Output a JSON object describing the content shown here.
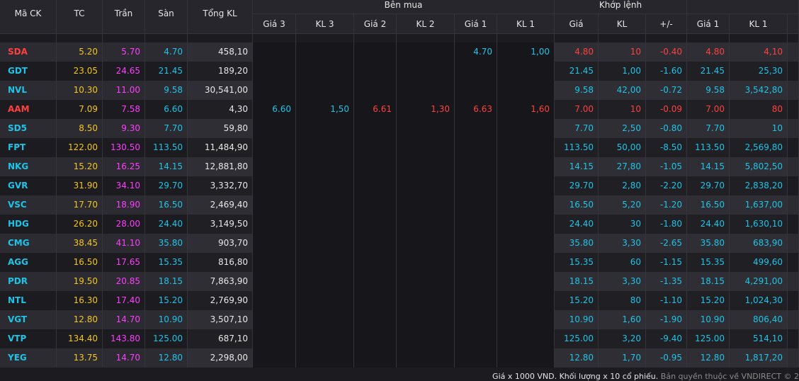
{
  "table": {
    "groups": [
      "Bên mua",
      "Khớp lệnh"
    ],
    "headers": [
      "Mã CK",
      "TC",
      "Trần",
      "Sàn",
      "Tổng KL",
      "Giá 3",
      "KL 3",
      "Giá 2",
      "KL 2",
      "Giá 1",
      "KL 1",
      "Giá",
      "KL",
      "+/-",
      "Giá 1",
      "KL 1"
    ],
    "rows": [
      [
        "SDA",
        "5.20",
        "5.70",
        "4.70",
        "458,10",
        null,
        null,
        null,
        null,
        "4.70",
        "1,00",
        "4.80",
        "10",
        "-0.40",
        "4.80",
        "4,10"
      ],
      [
        "GDT",
        "23.05",
        "24.65",
        "21.45",
        "189,20",
        null,
        null,
        null,
        null,
        null,
        null,
        "21.45",
        "1,00",
        "-1.60",
        "21.45",
        "25,30"
      ],
      [
        "NVL",
        "10.30",
        "11.00",
        "9.58",
        "30,541,00",
        null,
        null,
        null,
        null,
        null,
        null,
        "9.58",
        "42,00",
        "-0.72",
        "9.58",
        "3,542,80"
      ],
      [
        "AAM",
        "7.09",
        "7.58",
        "6.60",
        "4,30",
        "6.60",
        "1,50",
        "6.61",
        "1,30",
        "6.63",
        "1,60",
        "7.00",
        "10",
        "-0.09",
        "7.00",
        "80"
      ],
      [
        "SD5",
        "8.50",
        "9.30",
        "7.70",
        "59,80",
        null,
        null,
        null,
        null,
        null,
        null,
        "7.70",
        "2,50",
        "-0.80",
        "7.70",
        "10"
      ],
      [
        "FPT",
        "122.00",
        "130.50",
        "113.50",
        "11,484,90",
        null,
        null,
        null,
        null,
        null,
        null,
        "113.50",
        "50,00",
        "-8.50",
        "113.50",
        "2,569,80"
      ],
      [
        "NKG",
        "15.20",
        "16.25",
        "14.15",
        "12,881,80",
        null,
        null,
        null,
        null,
        null,
        null,
        "14.15",
        "27,80",
        "-1.05",
        "14.15",
        "5,802,50"
      ],
      [
        "GVR",
        "31.90",
        "34.10",
        "29.70",
        "3,332,70",
        null,
        null,
        null,
        null,
        null,
        null,
        "29.70",
        "2,80",
        "-2.20",
        "29.70",
        "2,838,20"
      ],
      [
        "VSC",
        "17.70",
        "18.90",
        "16.50",
        "2,469,40",
        null,
        null,
        null,
        null,
        null,
        null,
        "16.50",
        "5,20",
        "-1.20",
        "16.50",
        "1,637,00"
      ],
      [
        "HDG",
        "26.20",
        "28.00",
        "24.40",
        "3,149,50",
        null,
        null,
        null,
        null,
        null,
        null,
        "24.40",
        "30",
        "-1.80",
        "24.40",
        "1,630,10"
      ],
      [
        "CMG",
        "38.45",
        "41.10",
        "35.80",
        "903,70",
        null,
        null,
        null,
        null,
        null,
        null,
        "35.80",
        "3,30",
        "-2.65",
        "35.80",
        "683,90"
      ],
      [
        "AGG",
        "16.50",
        "17.65",
        "15.35",
        "816,80",
        null,
        null,
        null,
        null,
        null,
        null,
        "15.35",
        "60",
        "-1.15",
        "15.35",
        "499,60"
      ],
      [
        "PDR",
        "19.50",
        "20.85",
        "18.15",
        "7,863,90",
        null,
        null,
        null,
        null,
        null,
        null,
        "18.15",
        "3,30",
        "-1.35",
        "18.15",
        "4,291,00"
      ],
      [
        "NTL",
        "16.30",
        "17.40",
        "15.20",
        "2,769,90",
        null,
        null,
        null,
        null,
        null,
        null,
        "15.20",
        "80",
        "-1.10",
        "15.20",
        "1,024,30"
      ],
      [
        "VGT",
        "12.80",
        "14.70",
        "10.90",
        "3,507,10",
        null,
        null,
        null,
        null,
        null,
        null,
        "10.90",
        "1,60",
        "-1.90",
        "10.90",
        "806,40"
      ],
      [
        "VTP",
        "134.40",
        "143.80",
        "125.00",
        "687,10",
        null,
        null,
        null,
        null,
        null,
        null,
        "125.00",
        "3,20",
        "-9.40",
        "125.00",
        "514,10"
      ],
      [
        "YEG",
        "13.75",
        "14.70",
        "12.80",
        "2,298,00",
        null,
        null,
        null,
        null,
        null,
        null,
        "12.80",
        "1,70",
        "-0.95",
        "12.80",
        "1,817,20"
      ]
    ]
  },
  "footer": {
    "note": "Giá x 1000 VND. Khối lượng x 10 cổ phiếu.",
    "copyright": "Bản quyền thuộc về VNDIRECT © 2"
  }
}
